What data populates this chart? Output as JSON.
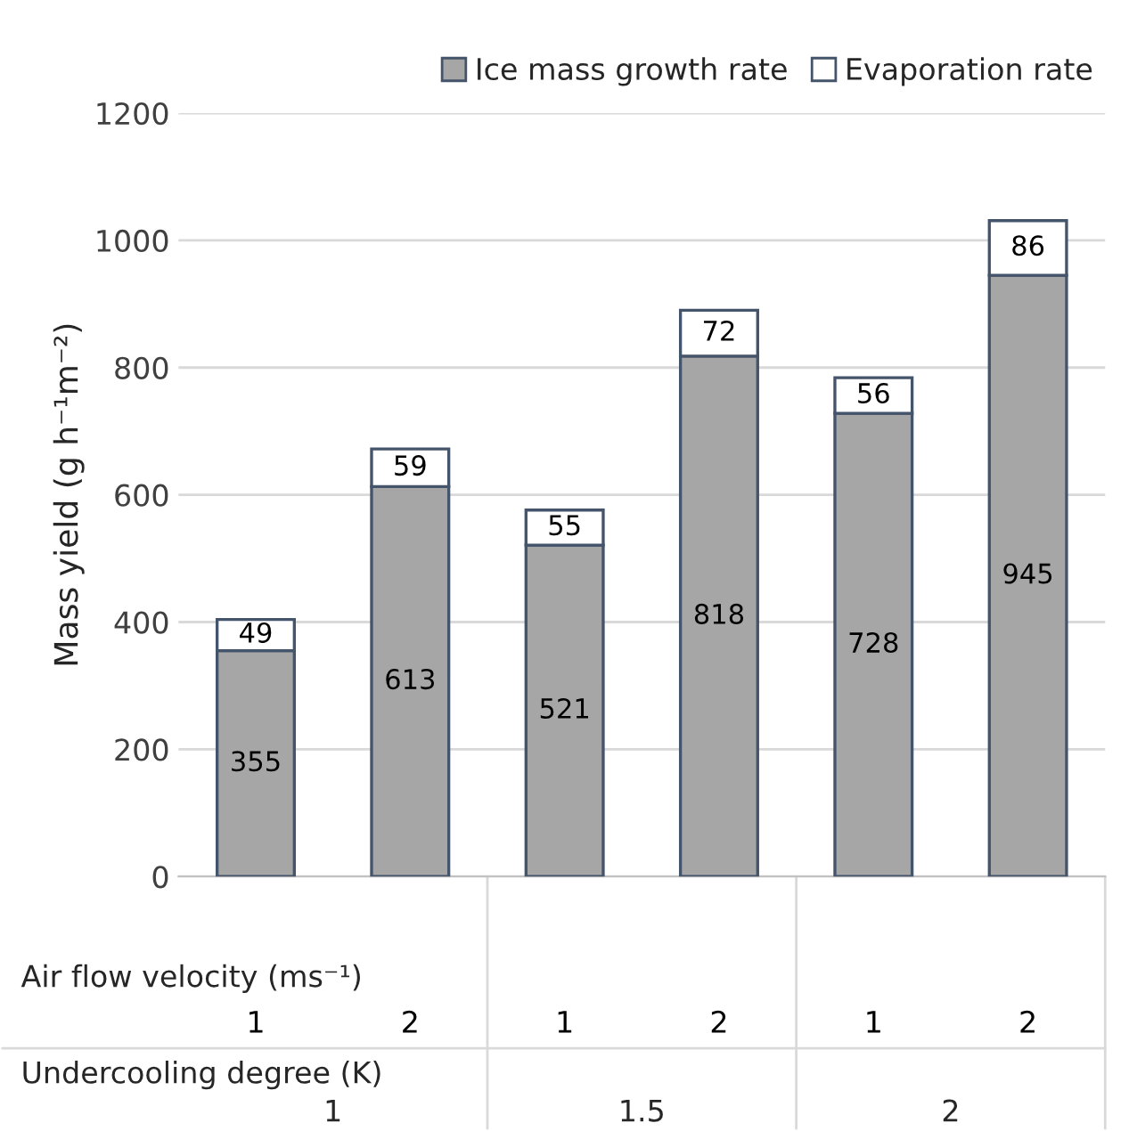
{
  "chart_data": {
    "type": "bar",
    "stacked": true,
    "categories": [
      "1",
      "2",
      "1",
      "2",
      "1",
      "2"
    ],
    "series": [
      {
        "name": "Ice mass growth rate",
        "color": "#a6a6a6",
        "values": [
          355,
          613,
          521,
          818,
          728,
          945
        ]
      },
      {
        "name": "Evaporation rate",
        "color": "#ffffff",
        "values": [
          49,
          59,
          55,
          72,
          56,
          86
        ]
      }
    ],
    "xlabel": "Air flow velocity (ms⁻¹)",
    "ylabel": "Mass yield (g h⁻¹m⁻²)",
    "annotations": [
      "Undercooling degree (K)",
      "1",
      "1.5",
      "2"
    ],
    "ylim": [
      0,
      1200
    ],
    "yticks": [
      0,
      200,
      400,
      600,
      800,
      1000,
      1200
    ],
    "grid": "y",
    "legend": "top right",
    "data_labels": true
  }
}
